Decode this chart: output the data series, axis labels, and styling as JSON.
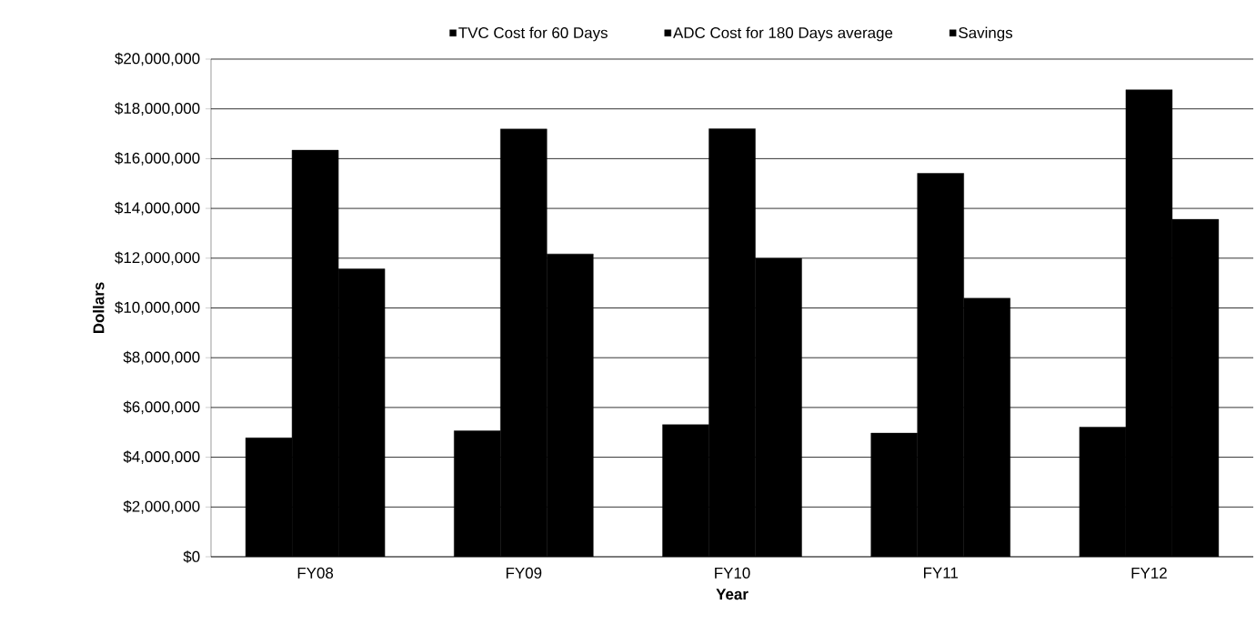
{
  "chart_data": {
    "type": "bar",
    "xlabel": "Year",
    "ylabel": "Dollars",
    "categories": [
      "FY08",
      "FY09",
      "FY10",
      "FY11",
      "FY12"
    ],
    "series": [
      {
        "name": "TVC Cost for 60 Days",
        "color": "#000000",
        "values": [
          4780000,
          5060000,
          5310000,
          4970000,
          5210000
        ]
      },
      {
        "name": "ADC Cost for 180 Days average",
        "color": "#000000",
        "values": [
          16340000,
          17190000,
          17200000,
          15410000,
          18770000
        ]
      },
      {
        "name": "Savings",
        "color": "#000000",
        "values": [
          11570000,
          12170000,
          11990000,
          10390000,
          13560000
        ]
      }
    ],
    "ylim": [
      0,
      20000000
    ],
    "yticks": [
      {
        "value": 0,
        "label": "$0"
      },
      {
        "value": 2000000,
        "label": "$2,000,000"
      },
      {
        "value": 4000000,
        "label": "$4,000,000"
      },
      {
        "value": 6000000,
        "label": "$6,000,000"
      },
      {
        "value": 8000000,
        "label": "$8,000,000"
      },
      {
        "value": 10000000,
        "label": "$10,000,000"
      },
      {
        "value": 12000000,
        "label": "$12,000,000"
      },
      {
        "value": 14000000,
        "label": "$14,000,000"
      },
      {
        "value": 16000000,
        "label": "$16,000,000"
      },
      {
        "value": 18000000,
        "label": "$18,000,000"
      },
      {
        "value": 20000000,
        "label": "$20,000,000"
      }
    ],
    "grid": "y",
    "legend": "top"
  }
}
